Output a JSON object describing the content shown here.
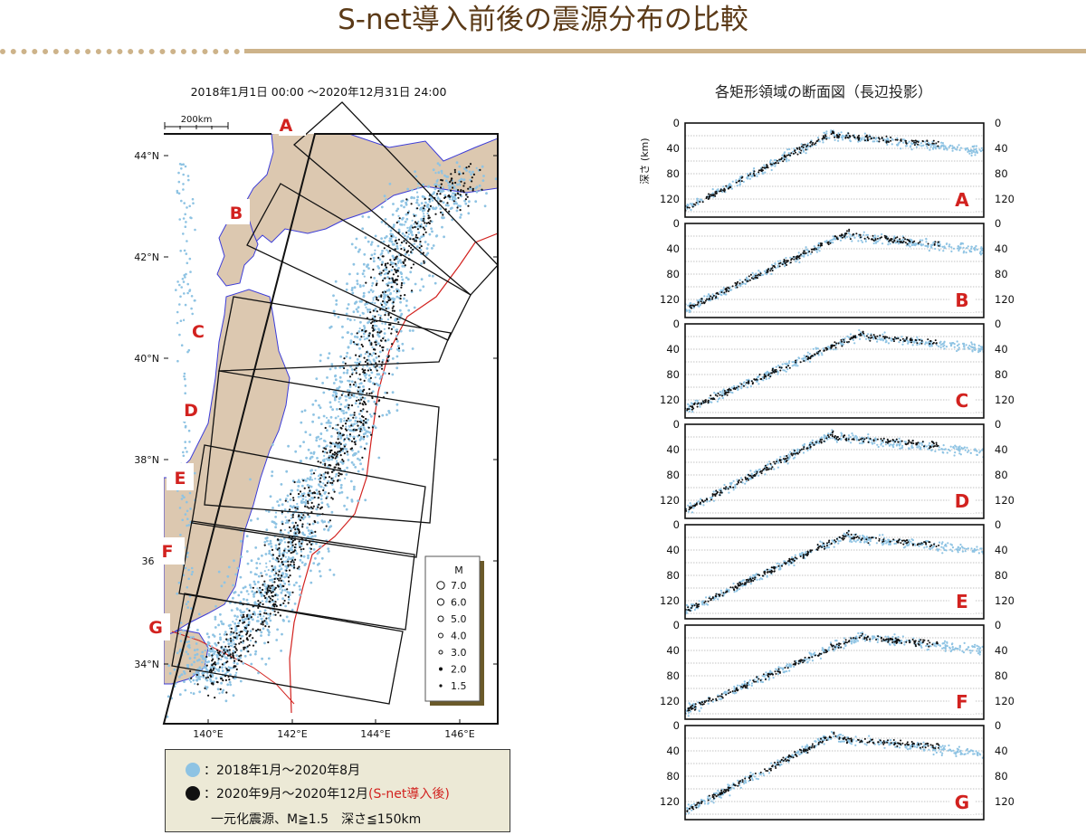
{
  "title": "S-net導入前後の震源分布の比較",
  "map": {
    "period": "2018年1月1日 00:00 ～2020年12月31日 24:00",
    "scale_label": "200km",
    "lat_labels": [
      "44°N",
      "42°N",
      "40°N",
      "38°N",
      "36°",
      "34°N"
    ],
    "lon_labels": [
      "140°E",
      "142°E",
      "144°E",
      "146°E"
    ],
    "regions": [
      "A",
      "B",
      "C",
      "D",
      "E",
      "F",
      "G"
    ],
    "magnitude_legend": {
      "title": "M",
      "levels": [
        "7.0",
        "6.0",
        "5.0",
        "4.0",
        "3.0",
        "2.0",
        "1.5"
      ]
    }
  },
  "legend": {
    "before": "：2018年1月～2020年8月",
    "after_prefix": "：2020年9月～2020年12月",
    "after_note": "(S-net導入後)",
    "criteria": "一元化震源、M≧1.5　深さ≦150km"
  },
  "sections": {
    "title": "各矩形領域の断面図（長辺投影）",
    "depth_label": "深さ (km)",
    "ticks": [
      "0",
      "40",
      "80",
      "120"
    ],
    "panels": [
      "A",
      "B",
      "C",
      "D",
      "E",
      "F",
      "G"
    ]
  },
  "colors": {
    "before": "#8ec3e3",
    "after": "#111111",
    "region_label": "#d2221f",
    "land": "#dcc8b0",
    "title": "#5b3a17"
  }
}
